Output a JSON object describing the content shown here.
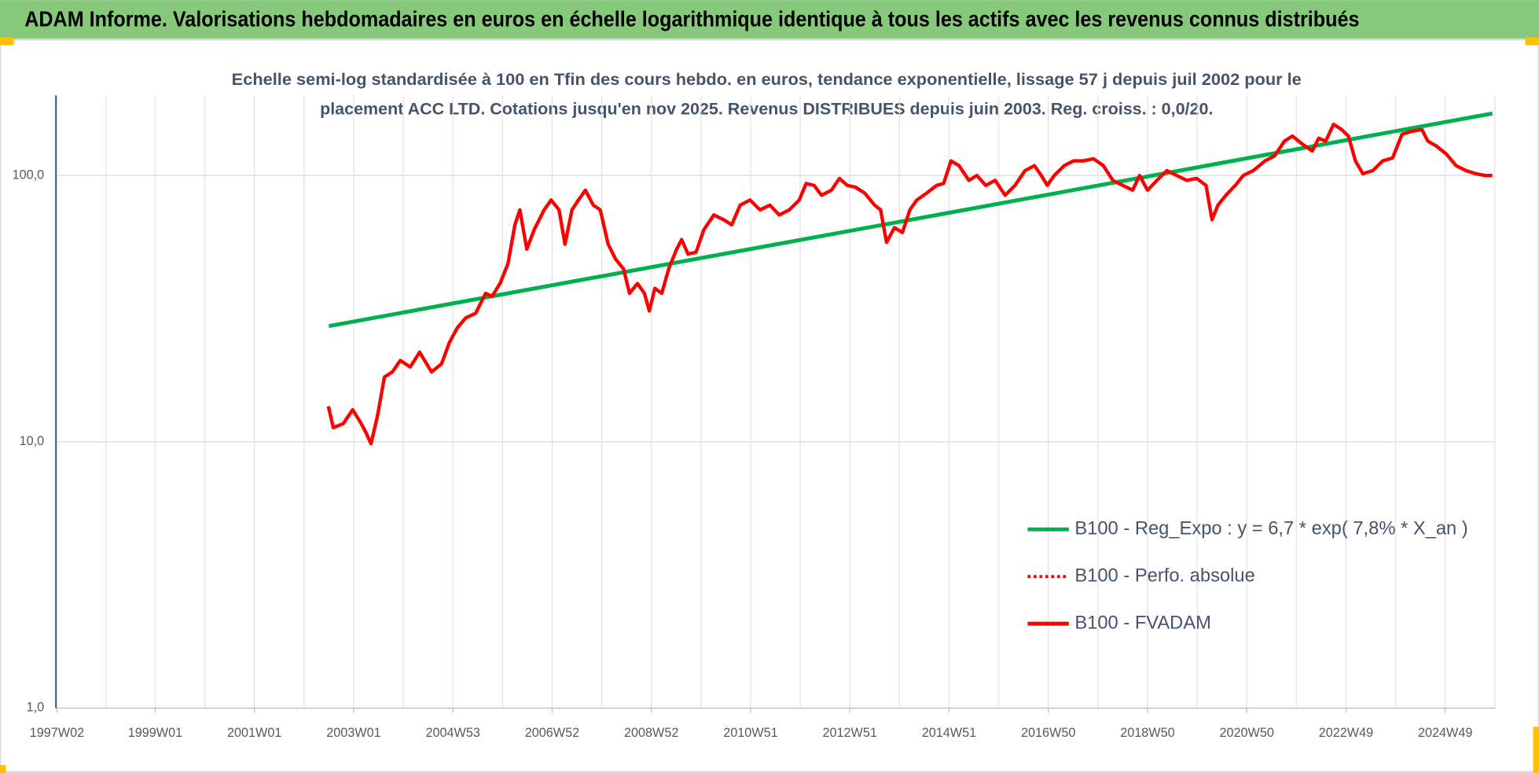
{
  "chart_data": {
    "type": "line",
    "title": "ADAM Informe. Valorisations hebdomadaires en euros en échelle logarithmique identique à tous les actifs avec les revenus connus distribués",
    "subtitle": [
      "Echelle semi-log standardisée à 100 en Tfin des cours hebdo. en euros, tendance exponentielle, lissage 57 j depuis juil 2002 pour le",
      "placement ACC LTD. Cotations jusqu'en nov 2025. Revenus DISTRIBUES depuis juin 2003. Reg.  croiss. : 0,0/20."
    ],
    "log_scale": true,
    "grid": true,
    "legend": "lower right",
    "xlim": [
      1997,
      2026
    ],
    "xticks": [
      {
        "value": 1997.02,
        "label": "1997W02"
      },
      {
        "value": 1999.0,
        "label": "1999W01"
      },
      {
        "value": 2001.0,
        "label": "2001W01"
      },
      {
        "value": 2003.0,
        "label": "2003W01"
      },
      {
        "value": 2005.0,
        "label": "2004W53"
      },
      {
        "value": 2007.0,
        "label": "2006W52"
      },
      {
        "value": 2009.0,
        "label": "2008W52"
      },
      {
        "value": 2011.0,
        "label": "2010W51"
      },
      {
        "value": 2013.0,
        "label": "2012W51"
      },
      {
        "value": 2015.0,
        "label": "2014W51"
      },
      {
        "value": 2017.0,
        "label": "2016W50"
      },
      {
        "value": 2019.0,
        "label": "2018W50"
      },
      {
        "value": 2021.0,
        "label": "2020W50"
      },
      {
        "value": 2023.0,
        "label": "2022W49"
      },
      {
        "value": 2025.0,
        "label": "2024W49"
      }
    ],
    "ylim": [
      1,
      200
    ],
    "yticks": [
      {
        "value": 1,
        "label": "1,0"
      },
      {
        "value": 10,
        "label": "10,0"
      },
      {
        "value": 100,
        "label": "100,0"
      }
    ],
    "series": [
      {
        "name": "B100 - Reg_Expo : y = 6,7 * exp( 7,8% *  X_an )",
        "color": "#00b050",
        "style": "solid",
        "x": [
          2002.5,
          2025.95
        ],
        "values": [
          27.2,
          171
        ]
      },
      {
        "name": "B100 - Perfo. absolue",
        "color": "#ff0000",
        "style": "dotted",
        "x": [],
        "values": []
      },
      {
        "name": "B100 - FVADAM",
        "color": "#ff0000",
        "style": "solid",
        "x": [
          2002.49,
          2002.59,
          2002.79,
          2002.98,
          2003.13,
          2003.23,
          2003.35,
          2003.48,
          2003.62,
          2003.78,
          2003.94,
          2004.14,
          2004.33,
          2004.57,
          2004.77,
          2004.93,
          2005.09,
          2005.26,
          2005.46,
          2005.66,
          2005.79,
          2005.95,
          2006.11,
          2006.25,
          2006.35,
          2006.49,
          2006.64,
          2006.84,
          2006.98,
          2007.14,
          2007.26,
          2007.4,
          2007.53,
          2007.67,
          2007.83,
          2007.97,
          2008.13,
          2008.28,
          2008.44,
          2008.56,
          2008.72,
          2008.86,
          2008.96,
          2009.07,
          2009.21,
          2009.35,
          2009.51,
          2009.61,
          2009.74,
          2009.9,
          2010.06,
          2010.26,
          2010.46,
          2010.62,
          2010.79,
          2010.99,
          2011.19,
          2011.39,
          2011.58,
          2011.78,
          2011.98,
          2012.12,
          2012.28,
          2012.43,
          2012.63,
          2012.79,
          2012.95,
          2013.11,
          2013.3,
          2013.5,
          2013.62,
          2013.74,
          2013.9,
          2014.06,
          2014.21,
          2014.35,
          2014.55,
          2014.75,
          2014.89,
          2015.04,
          2015.2,
          2015.4,
          2015.56,
          2015.74,
          2015.93,
          2016.13,
          2016.33,
          2016.53,
          2016.72,
          2016.86,
          2016.98,
          2017.12,
          2017.32,
          2017.51,
          2017.71,
          2017.91,
          2018.11,
          2018.3,
          2018.5,
          2018.7,
          2018.84,
          2019.0,
          2019.19,
          2019.39,
          2019.59,
          2019.79,
          2019.99,
          2020.18,
          2020.3,
          2020.42,
          2020.58,
          2020.77,
          2020.93,
          2021.13,
          2021.37,
          2021.56,
          2021.76,
          2021.92,
          2022.12,
          2022.32,
          2022.45,
          2022.59,
          2022.75,
          2022.91,
          2023.05,
          2023.19,
          2023.34,
          2023.54,
          2023.74,
          2023.94,
          2024.13,
          2024.33,
          2024.53,
          2024.65,
          2024.82,
          2025.02,
          2025.22,
          2025.42,
          2025.61,
          2025.81,
          2025.95
        ],
        "values": [
          13.6,
          11.3,
          11.7,
          13.2,
          11.9,
          11.0,
          9.84,
          12.5,
          17.5,
          18.3,
          20.2,
          19.1,
          21.7,
          18.3,
          19.6,
          23.6,
          26.8,
          29.2,
          30.4,
          36.1,
          35.2,
          39.3,
          46.6,
          65.3,
          74.3,
          52.9,
          62.7,
          74.3,
          80.9,
          74.3,
          55.2,
          74.3,
          80.9,
          88.1,
          77.4,
          74.3,
          55.2,
          48.5,
          44.6,
          36.1,
          39.3,
          36.1,
          31.0,
          37.7,
          36.1,
          44.6,
          52.9,
          57.5,
          50.7,
          51.5,
          62.7,
          71.1,
          68.2,
          65.3,
          77.4,
          80.9,
          74.3,
          77.4,
          71.1,
          74.3,
          80.9,
          93.3,
          91.8,
          84.3,
          88.1,
          97.5,
          91.8,
          90.4,
          85.9,
          77.4,
          74.3,
          56.1,
          63.7,
          61.1,
          74.3,
          80.9,
          85.9,
          91.8,
          93.3,
          113.5,
          108.9,
          95.9,
          100,
          91.8,
          95.9,
          84.3,
          91.8,
          104.3,
          108.9,
          100,
          91.8,
          100,
          108.9,
          113.5,
          113.5,
          115.6,
          108.9,
          95.9,
          91.8,
          88.1,
          100,
          88.1,
          95.9,
          104.3,
          100,
          95.9,
          97.5,
          91.8,
          68.2,
          77.4,
          84.3,
          91.8,
          100,
          104.3,
          113.5,
          118.5,
          134.6,
          140.6,
          131.2,
          123.6,
          138.0,
          134.6,
          155.6,
          148.9,
          140.6,
          113.5,
          101.6,
          104.3,
          113.5,
          116.4,
          142.9,
          146.6,
          148.9,
          134.6,
          129.1,
          120.5,
          108.9,
          104.3,
          101.6,
          100,
          100
        ]
      }
    ]
  }
}
